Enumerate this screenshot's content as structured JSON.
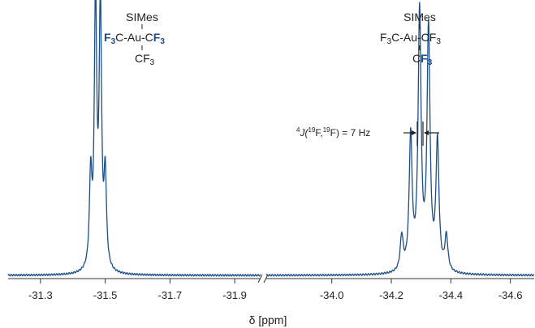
{
  "chart_data": {
    "type": "line",
    "xlabel": "δ [ppm]",
    "x_reversed": true,
    "axis_break": true,
    "line_color": "#1d4e89",
    "panels": [
      {
        "xlim": [
          -31.2,
          -31.98
        ],
        "ticks": [
          -31.3,
          -31.5,
          -31.7,
          -31.9
        ],
        "tick_labels": [
          "-31.3",
          "-31.5",
          "-31.7",
          "-31.9"
        ],
        "peaks": [
          {
            "x": -31.455,
            "y": 0.34
          },
          {
            "x": -31.47,
            "y": 1.0
          },
          {
            "x": -31.485,
            "y": 0.98
          },
          {
            "x": -31.5,
            "y": 0.34
          }
        ],
        "structure": {
          "top": "SIMes",
          "left_plain": "C-Au-C",
          "bottom": "CF",
          "highlight": "F",
          "sub": "3"
        }
      },
      {
        "xlim": [
          -33.78,
          -34.68
        ],
        "ticks": [
          -34.0,
          -34.2,
          -34.4,
          -34.6
        ],
        "tick_labels": [
          "-34.0",
          "-34.2",
          "-34.4",
          "-34.6"
        ],
        "peaks": [
          {
            "x": -34.235,
            "y": 0.13
          },
          {
            "x": -34.265,
            "y": 0.5
          },
          {
            "x": -34.295,
            "y": 0.96
          },
          {
            "x": -34.325,
            "y": 0.9
          },
          {
            "x": -34.355,
            "y": 0.48
          },
          {
            "x": -34.385,
            "y": 0.13
          }
        ],
        "structure": {
          "top": "SIMes",
          "left": "F",
          "middle": "C-Au-CF",
          "bottom": "C",
          "highlight": "F",
          "sub": "3"
        }
      }
    ],
    "annotation": {
      "j_label": "J(",
      "j_sup": "4",
      "j_nuc": "19",
      "j_F": "F,",
      "j_tail": "F) = 7 Hz"
    }
  }
}
